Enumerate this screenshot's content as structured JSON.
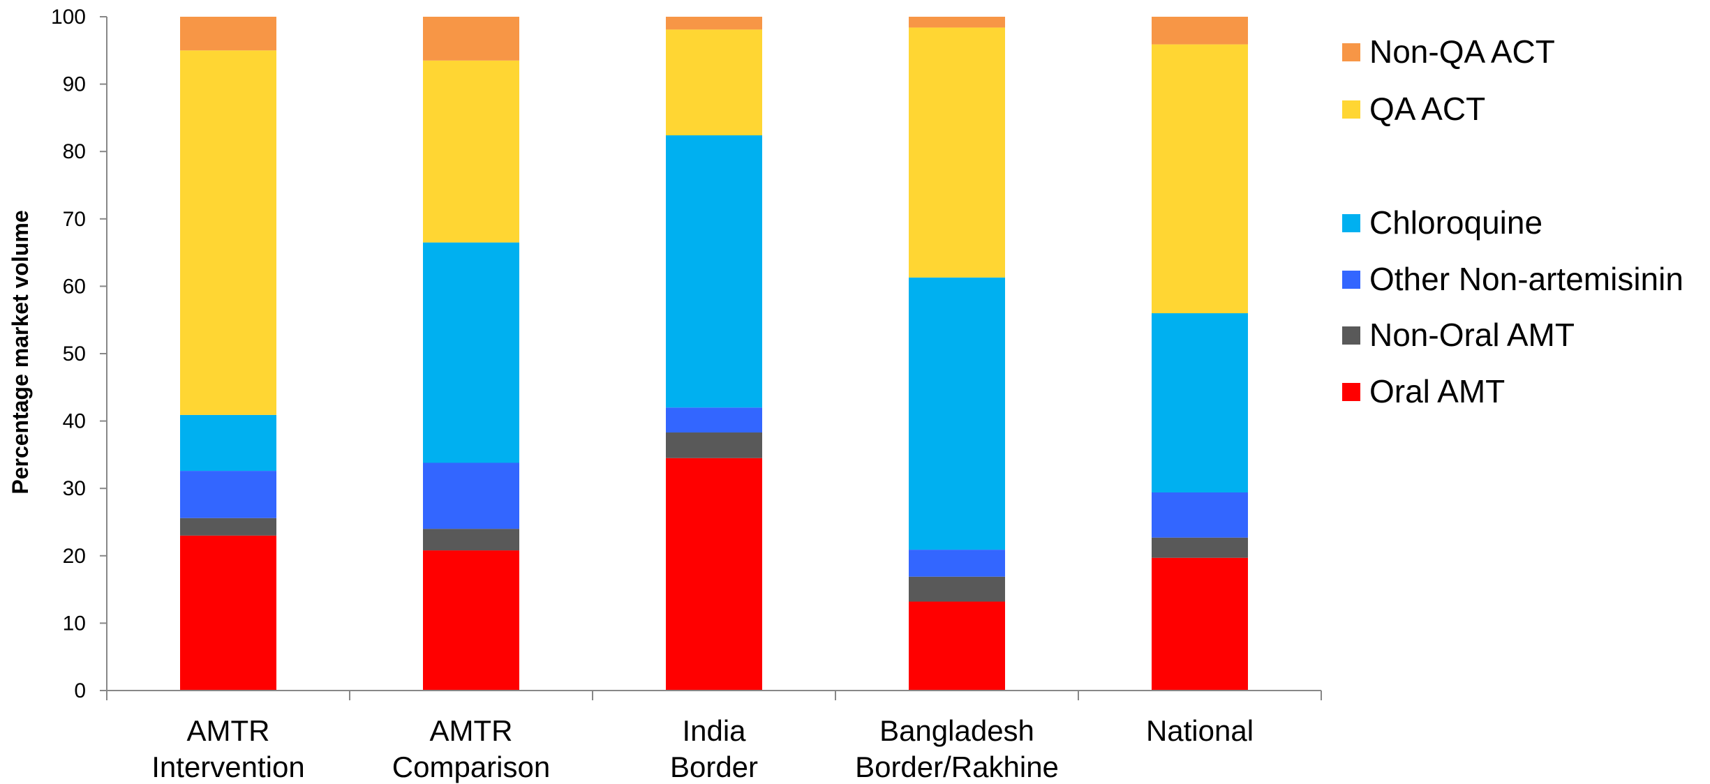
{
  "chart_data": {
    "type": "bar",
    "stacked": true,
    "title": "",
    "xlabel": "",
    "ylabel": "Percentage market volume",
    "ylim": [
      0,
      100
    ],
    "yticks": [
      0,
      10,
      20,
      30,
      40,
      50,
      60,
      70,
      80,
      90,
      100
    ],
    "grid": false,
    "legend_position": "right",
    "categories": [
      [
        "AMTR",
        "Intervention"
      ],
      [
        "AMTR",
        "Comparison"
      ],
      [
        "India",
        "Border"
      ],
      [
        "Bangladesh",
        "Border/Rakhine"
      ],
      [
        "National"
      ]
    ],
    "series": [
      {
        "name": "Oral AMT",
        "color": "#ff0000",
        "values": [
          23.0,
          20.8,
          34.5,
          13.2,
          19.7
        ]
      },
      {
        "name": "Non-Oral AMT",
        "color": "#595959",
        "values": [
          2.6,
          3.2,
          3.8,
          3.7,
          3.0
        ]
      },
      {
        "name": "Other Non-artemisinin",
        "color": "#3366ff",
        "values": [
          7.0,
          9.8,
          3.7,
          4.0,
          6.7
        ]
      },
      {
        "name": "Chloroquine",
        "color": "#00b0f0",
        "values": [
          8.3,
          32.7,
          40.4,
          40.4,
          26.6
        ]
      },
      {
        "name": "QA ACT",
        "color": "#ffd633",
        "values": [
          54.1,
          27.0,
          15.7,
          37.1,
          39.9
        ]
      },
      {
        "name": "Non-QA ACT",
        "color": "#f79646",
        "values": [
          5.0,
          6.5,
          1.9,
          1.6,
          4.1
        ]
      }
    ],
    "legend_order": [
      "Non-QA ACT",
      "QA ACT",
      "Chloroquine",
      "Other Non-artemisinin",
      "Non-Oral AMT",
      "Oral AMT"
    ],
    "axis_color": "#878787"
  }
}
